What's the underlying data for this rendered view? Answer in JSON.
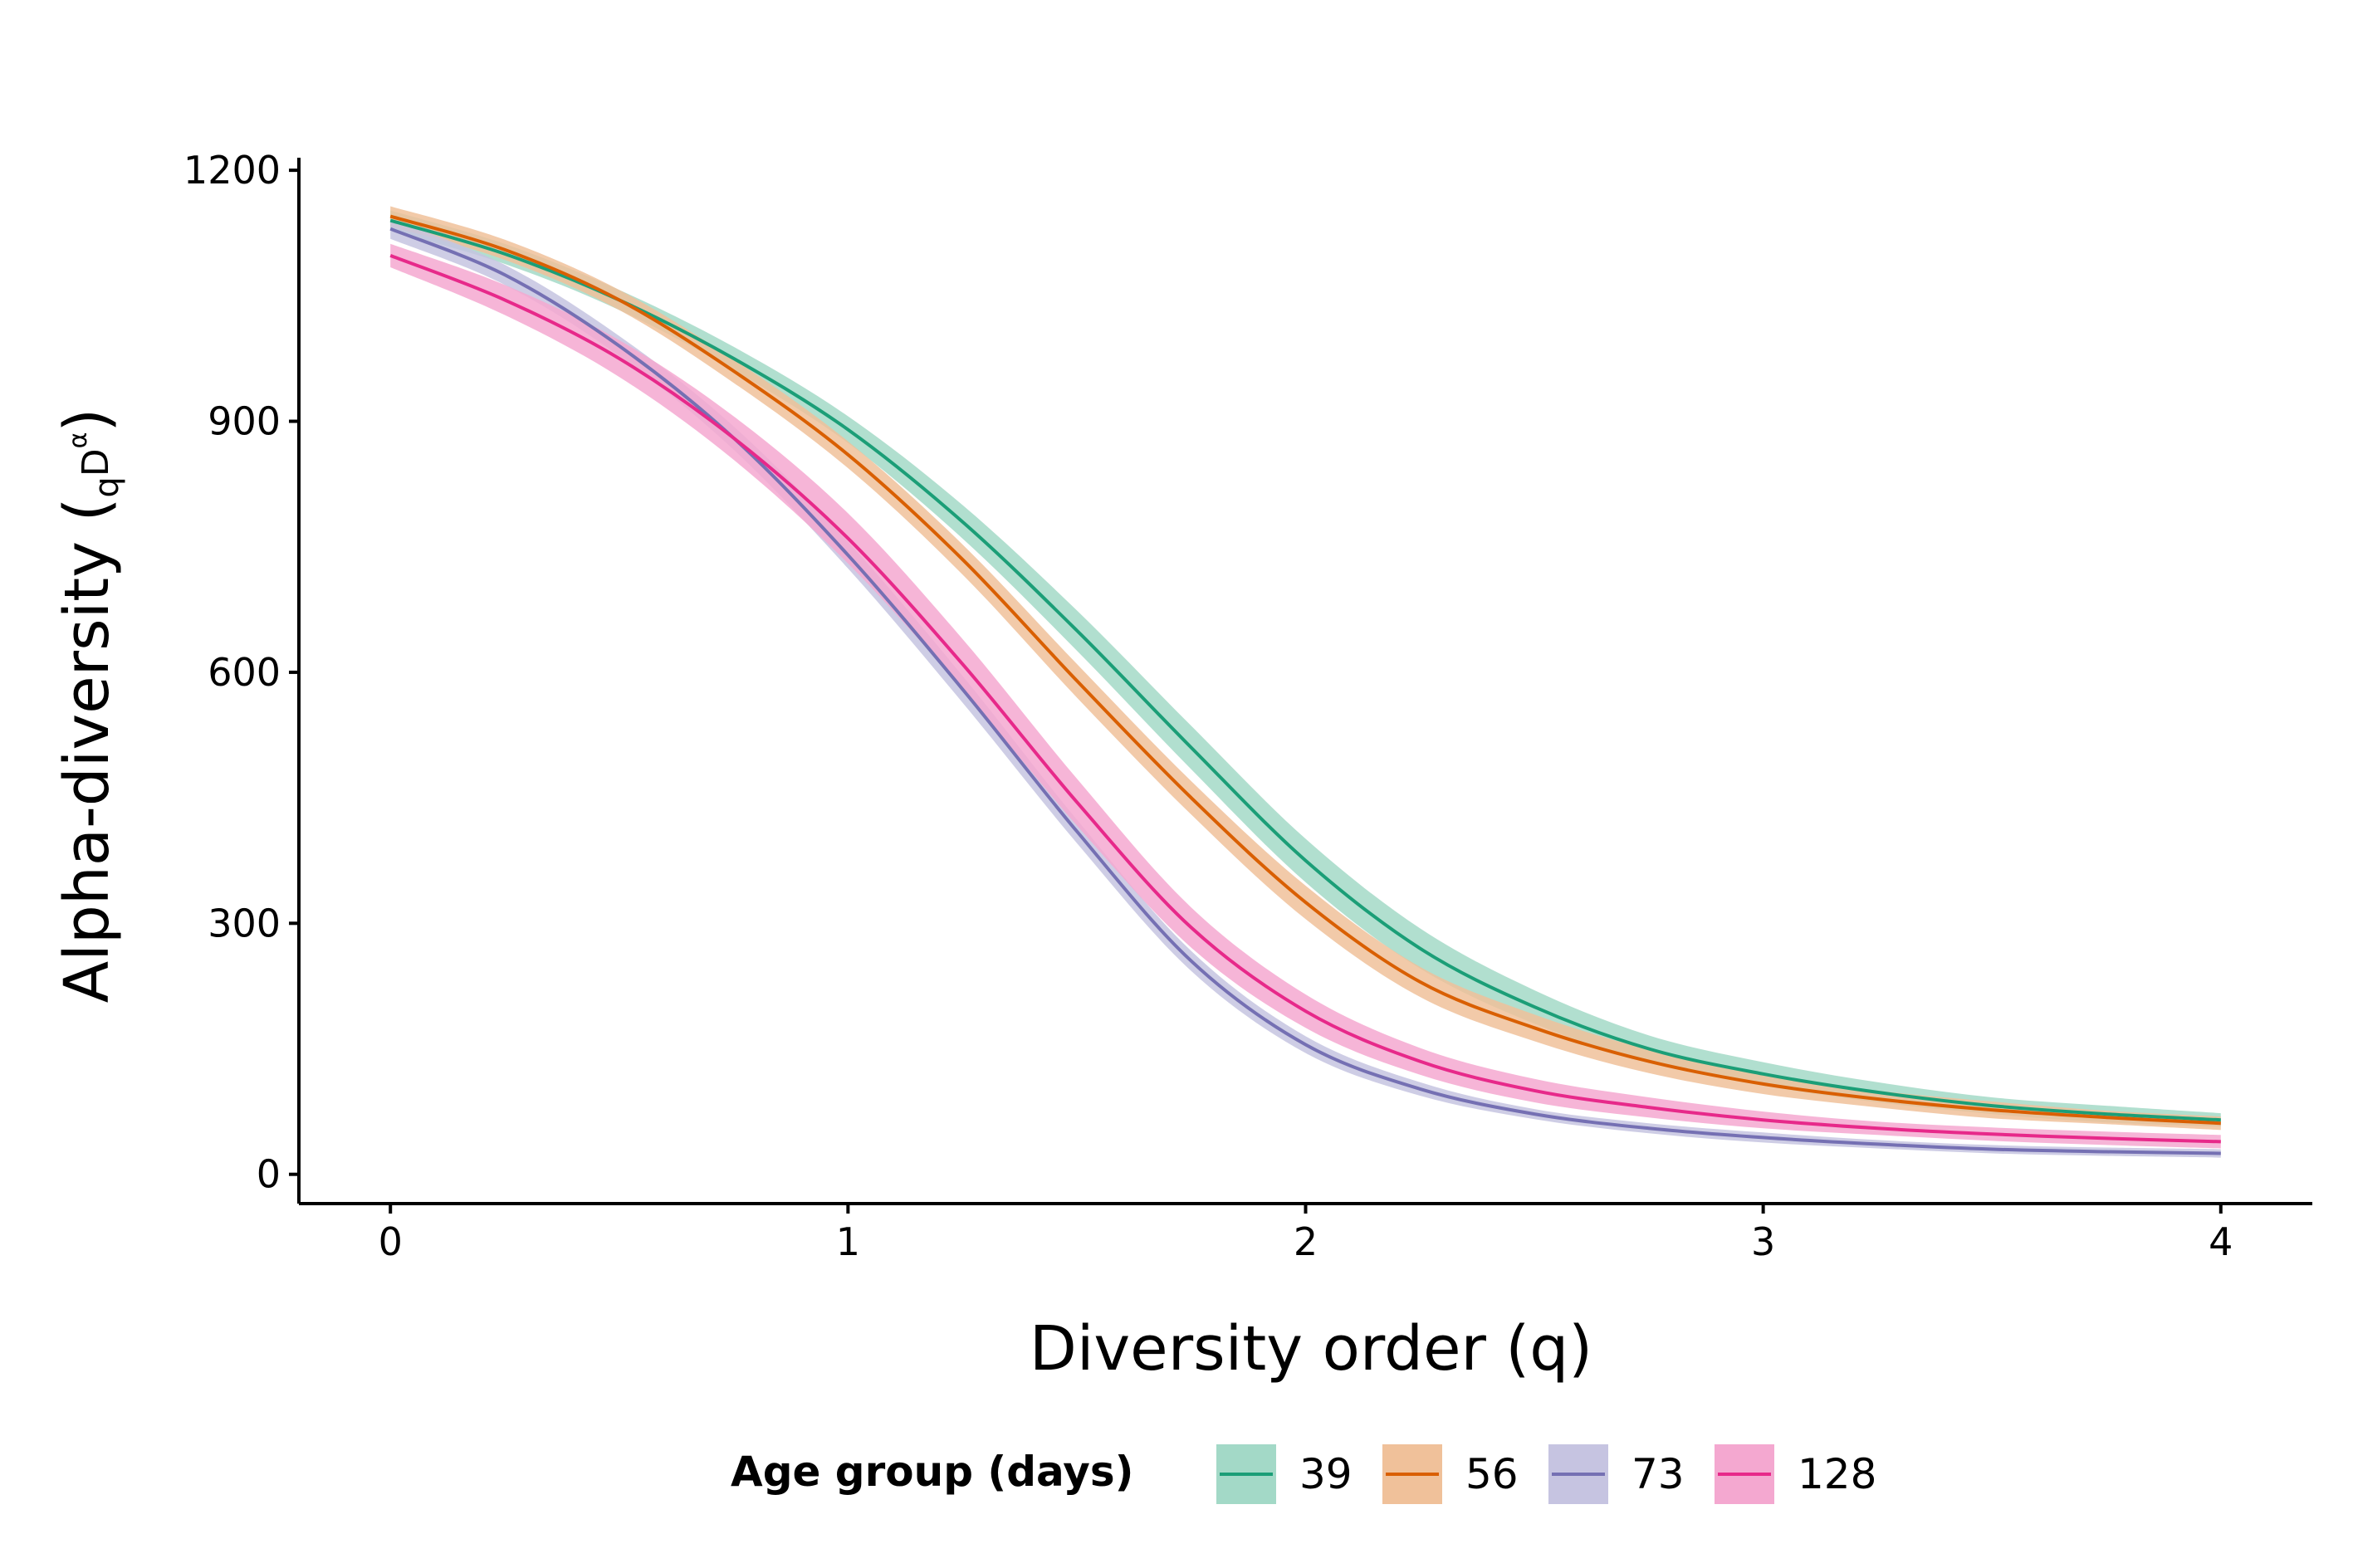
{
  "chart_data": {
    "type": "line",
    "xlabel": "Diversity order (q)",
    "ylabel": {
      "main": "Alpha-diversity (",
      "sub": "q",
      "base": "D",
      "sup": "α",
      "close": ")"
    },
    "xlim": [
      -0.2,
      4.2
    ],
    "ylim": [
      -35,
      1215
    ],
    "x_ticks": [
      0,
      1,
      2,
      3,
      4
    ],
    "x_tick_labels": [
      "0",
      "1",
      "2",
      "3",
      "4"
    ],
    "y_ticks": [
      0,
      300,
      600,
      900,
      1200
    ],
    "y_tick_labels": [
      "0",
      "300",
      "600",
      "900",
      "1200"
    ],
    "grid": false,
    "legend": {
      "title": "Age group (days)",
      "position": "bottom"
    },
    "x": [
      0,
      0.25,
      0.5,
      0.75,
      1.0,
      1.25,
      1.5,
      1.75,
      2.0,
      2.25,
      2.5,
      2.75,
      3.0,
      3.25,
      3.5,
      3.75,
      4.0
    ],
    "series": [
      {
        "name": "39",
        "color": "#1b9e77",
        "band_color": "#a3d9c7",
        "values": [
          1140,
          1100,
          1045,
          975,
          890,
          780,
          650,
          510,
          375,
          270,
          200,
          150,
          120,
          98,
          82,
          72,
          65
        ],
        "band": [
          12,
          12,
          12,
          14,
          16,
          20,
          24,
          26,
          26,
          24,
          20,
          16,
          14,
          12,
          10,
          10,
          8
        ]
      },
      {
        "name": "56",
        "color": "#d95f02",
        "band_color": "#f0c19a",
        "values": [
          1145,
          1105,
          1045,
          960,
          860,
          735,
          590,
          450,
          325,
          230,
          175,
          135,
          108,
          90,
          77,
          68,
          61
        ],
        "band": [
          12,
          12,
          12,
          14,
          16,
          18,
          20,
          20,
          20,
          18,
          16,
          14,
          12,
          10,
          10,
          8,
          8
        ]
      },
      {
        "name": "73",
        "color": "#7570b3",
        "band_color": "#c6c4e1",
        "values": [
          1130,
          1075,
          990,
          880,
          740,
          580,
          410,
          255,
          155,
          102,
          72,
          55,
          44,
          36,
          30,
          27,
          25
        ],
        "band": [
          12,
          12,
          12,
          14,
          16,
          16,
          14,
          12,
          10,
          8,
          6,
          6,
          6,
          5,
          5,
          5,
          5
        ]
      },
      {
        "name": "128",
        "color": "#e7298a",
        "band_color": "#f4a8d0",
        "values": [
          1098,
          1045,
          975,
          880,
          760,
          610,
          445,
          295,
          195,
          135,
          100,
          80,
          65,
          55,
          48,
          43,
          39
        ],
        "band": [
          14,
          18,
          22,
          26,
          30,
          30,
          28,
          24,
          20,
          16,
          14,
          12,
          10,
          8,
          8,
          8,
          8
        ]
      }
    ]
  }
}
